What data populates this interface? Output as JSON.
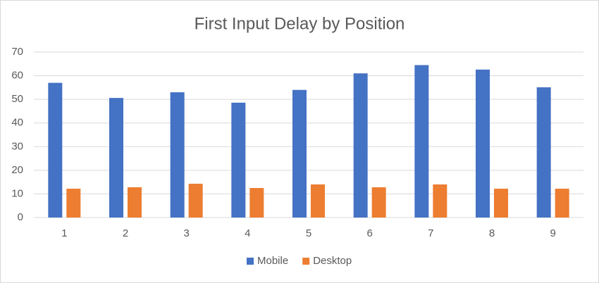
{
  "chart_data": {
    "type": "bar",
    "title": "First Input Delay by Position",
    "categories": [
      "1",
      "2",
      "3",
      "4",
      "5",
      "6",
      "7",
      "8",
      "9"
    ],
    "series": [
      {
        "name": "Mobile",
        "color": "#4472c4",
        "values": [
          57,
          50.6,
          53,
          48.6,
          54,
          61,
          64.5,
          62.6,
          55.1
        ]
      },
      {
        "name": "Desktop",
        "color": "#ed7d31",
        "values": [
          12.2,
          12.8,
          14.3,
          12.5,
          14,
          12.8,
          14,
          12.2,
          12.2
        ]
      }
    ],
    "ylim": [
      0,
      70
    ],
    "yticks": [
      0,
      10,
      20,
      30,
      40,
      50,
      60,
      70
    ],
    "grid": true,
    "legend": "bottom"
  }
}
